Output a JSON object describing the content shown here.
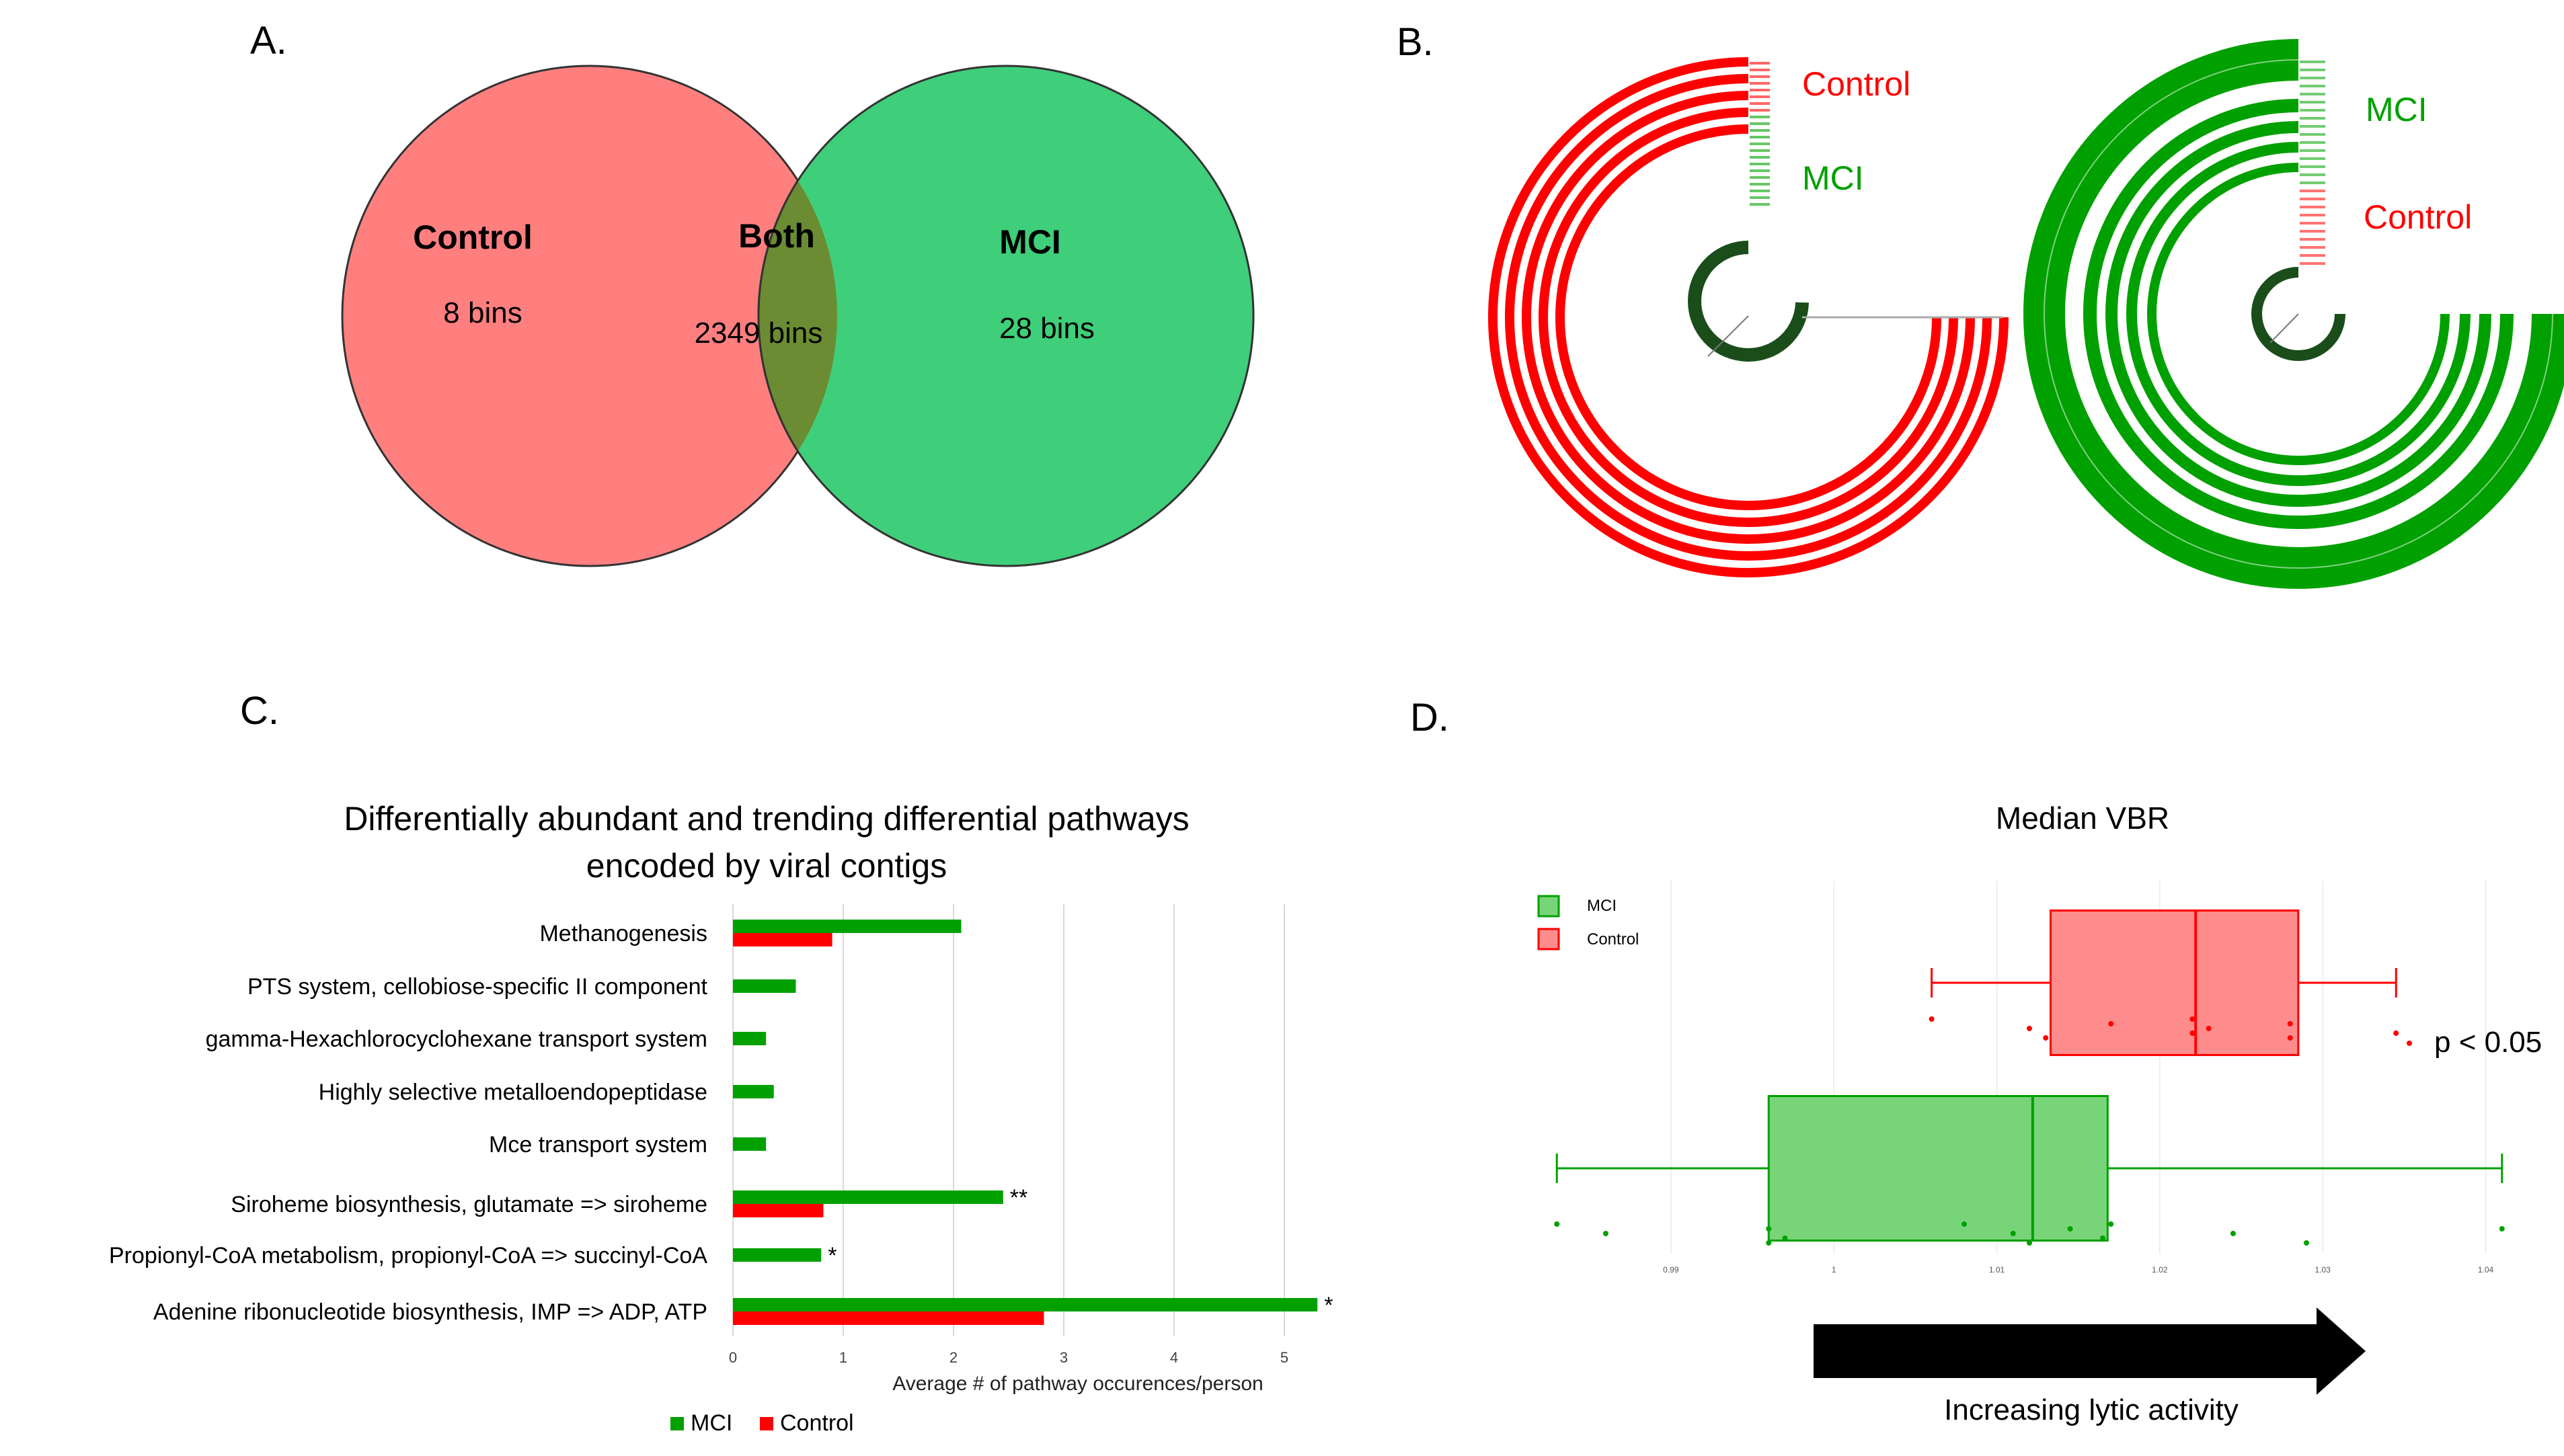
{
  "colors": {
    "control_venn": "#ff7f7f",
    "mci_venn": "#3fcf7a",
    "overlap": "#6b8c33",
    "red": "#ff0000",
    "green": "#00a000",
    "dark_green": "#1a4d1a",
    "box_red": "#ff8c8c",
    "box_green": "#78d478"
  },
  "panel_labels": {
    "a": "A.",
    "b": "B.",
    "c": "C.",
    "d": "D."
  },
  "venn": {
    "control": {
      "title": "Control",
      "count": "8 bins"
    },
    "both": {
      "title": "Both",
      "count": "2349 bins"
    },
    "mci": {
      "title": "MCI",
      "count": "28 bins"
    }
  },
  "circos": {
    "left": {
      "outer_label": "Control",
      "inner_label": "MCI"
    },
    "right": {
      "outer_label": "MCI",
      "inner_label": "Control"
    }
  },
  "chart_data": [
    {
      "type": "bar",
      "orientation": "horizontal",
      "title": [
        "Differentially abundant and trending differential pathways",
        "encoded by viral contigs"
      ],
      "categories": [
        "Methanogenesis",
        "PTS system, cellobiose-specific II component",
        "gamma-Hexachlorocyclohexane transport system",
        "Highly selective metalloendopeptidase",
        "Mce transport system",
        "Siroheme biosynthesis, glutamate => siroheme",
        "Propionyl-CoA metabolism, propionyl-CoA => succinyl-CoA",
        "Adenine ribonucleotide biosynthesis, IMP => ADP, ATP"
      ],
      "series": [
        {
          "name": "MCI",
          "color": "#00a000",
          "values": [
            2.07,
            0.57,
            0.3,
            0.37,
            0.3,
            2.45,
            0.8,
            5.3
          ]
        },
        {
          "name": "Control",
          "color": "#ff0000",
          "values": [
            0.9,
            null,
            null,
            null,
            null,
            0.82,
            null,
            2.82
          ]
        }
      ],
      "significance": [
        "",
        "",
        "",
        "",
        "",
        "**",
        "*",
        "*"
      ],
      "xlabel": "Average # of pathway occurences/person",
      "xlim": [
        0,
        5.5
      ],
      "xticks": [
        "0",
        "1",
        "2",
        "3",
        "4",
        "5"
      ],
      "grid": "vertical",
      "legend": [
        "MCI",
        "Control"
      ]
    },
    {
      "type": "boxplot",
      "orientation": "horizontal",
      "title": "Median VBR",
      "series": [
        {
          "name": "Control",
          "whisker_low": 1.006,
          "q1": 1.0133,
          "median": 1.0222,
          "q3": 1.0285,
          "whisker_high": 1.0345,
          "points": [
            1.006,
            1.012,
            1.013,
            1.017,
            1.022,
            1.022,
            1.023,
            1.028,
            1.028,
            1.0345
          ]
        },
        {
          "name": "MCI",
          "whisker_low": 0.983,
          "q1": 0.996,
          "median": 1.0122,
          "q3": 1.0168,
          "whisker_high": 1.041,
          "points": [
            0.983,
            0.986,
            0.996,
            0.996,
            0.997,
            1.008,
            1.011,
            1.012,
            1.0145,
            1.0165,
            1.017,
            1.0245,
            1.029,
            1.041
          ]
        }
      ],
      "xticks": [
        "0.99",
        "1",
        "1.01",
        "1.02",
        "1.03",
        "1.04"
      ],
      "xlim": [
        0.982,
        1.042
      ],
      "legend": [
        "MCI",
        "Control"
      ],
      "annotation": "p < 0.05",
      "arrow_label": "Increasing lytic activity"
    }
  ]
}
